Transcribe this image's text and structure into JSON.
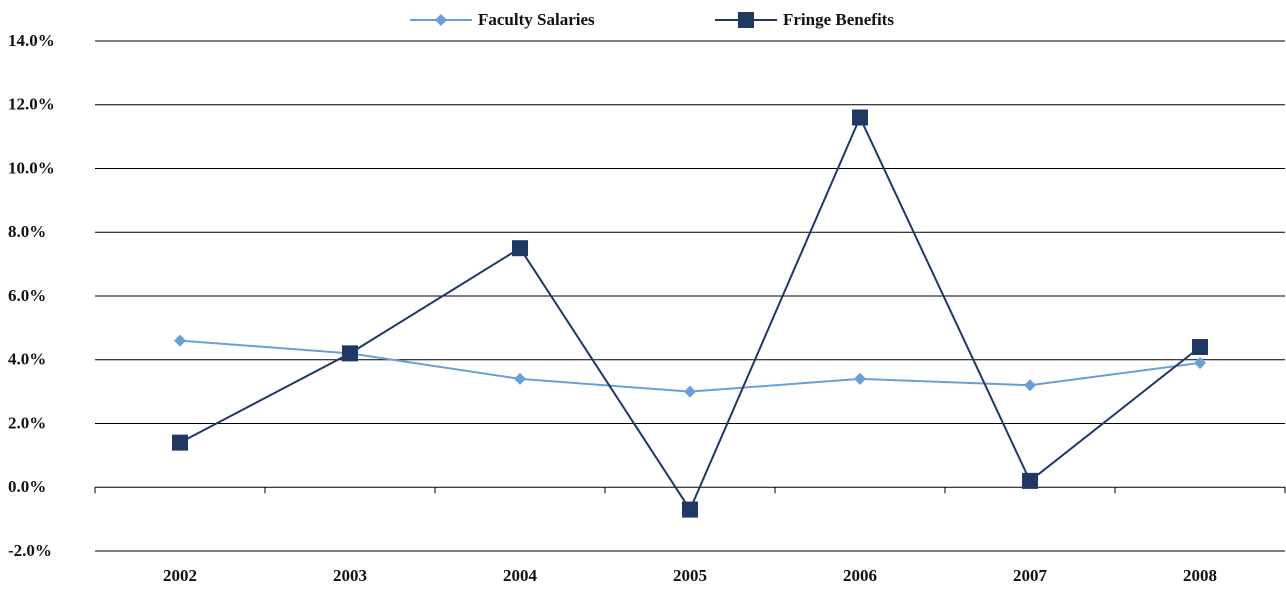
{
  "chart_data": {
    "type": "line",
    "categories": [
      "2002",
      "2003",
      "2004",
      "2005",
      "2006",
      "2007",
      "2008"
    ],
    "series": [
      {
        "name": "Faculty Salaries",
        "color": "#6a9fd4",
        "marker": "diamond",
        "values": [
          4.6,
          4.2,
          3.4,
          3.0,
          3.4,
          3.2,
          3.9
        ]
      },
      {
        "name": "Fringe Benefits",
        "color": "#1f3864",
        "marker": "square",
        "values": [
          1.4,
          4.2,
          7.5,
          -0.7,
          11.6,
          0.2,
          4.4
        ]
      }
    ],
    "ylim": [
      -2,
      14
    ],
    "yticks": [
      {
        "value": -2,
        "label": "-2.0%"
      },
      {
        "value": 0,
        "label": "0.0%"
      },
      {
        "value": 2,
        "label": "2.0%"
      },
      {
        "value": 4,
        "label": "4.0%"
      },
      {
        "value": 6,
        "label": "6.0%"
      },
      {
        "value": 8,
        "label": "8.0%"
      },
      {
        "value": 10,
        "label": "10.0%"
      },
      {
        "value": 12,
        "label": "12.0%"
      },
      {
        "value": 14,
        "label": "14.0%"
      }
    ],
    "grid": true,
    "legend": "top"
  }
}
